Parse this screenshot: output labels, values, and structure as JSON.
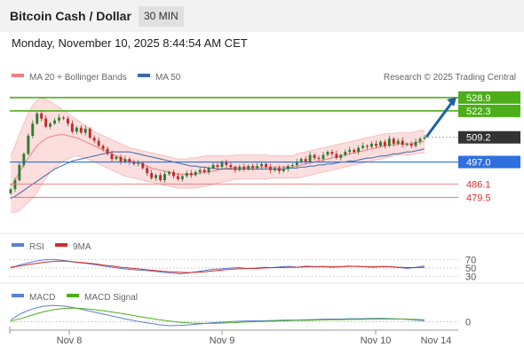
{
  "header": {
    "title": "Bitcoin Cash / Dollar",
    "timeframe": "30 MIN"
  },
  "datetime": "Monday, November 10, 2025 8:44:54 AM CET",
  "credit": "Research © 2025 Trading Central",
  "legend": {
    "ma20": "MA 20 + Bollinger Bands",
    "ma50": "MA 50",
    "rsi": "RSI",
    "rsi9": "9MA",
    "macd": "MACD",
    "macd_signal": "MACD Signal"
  },
  "colors": {
    "ma20": "#f08080",
    "band": "#fbd3d3",
    "ma50": "#3a6ab0",
    "up": "#2e7d32",
    "down": "#c62828",
    "resistance": "#4caf1a",
    "support": "#e57373",
    "pivot": "#2f6fdf",
    "current": "#333333",
    "rsi": "#5b7fd6",
    "rsi9": "#d62828",
    "macd": "#5b7fd6",
    "macd_signal": "#4caf1a",
    "arrow": "#1f5fa8"
  },
  "chart_data": [
    {
      "type": "candlestick",
      "name": "price",
      "ylim": [
        470,
        535
      ],
      "x_labels": [
        "Nov 8",
        "Nov 9",
        "Nov 10",
        "Nov 14"
      ],
      "levels": [
        {
          "value": 528.9,
          "label": "528.9",
          "kind": "resistance"
        },
        {
          "value": 522.3,
          "label": "522.3",
          "kind": "resistance"
        },
        {
          "value": 509.2,
          "label": "509.2",
          "kind": "current"
        },
        {
          "value": 497.0,
          "label": "497.0",
          "kind": "pivot"
        },
        {
          "value": 486.1,
          "label": "486.1",
          "kind": "support"
        },
        {
          "value": 479.5,
          "label": "479.5",
          "kind": "support"
        }
      ],
      "forecast": {
        "from": 508.5,
        "to": 528.9
      },
      "close": [
        483.5,
        488,
        495.5,
        501,
        510,
        516,
        521,
        518.5,
        514.5,
        516,
        517.5,
        519,
        518.5,
        516,
        512,
        514,
        511.5,
        513.5,
        509,
        507.5,
        505,
        503.5,
        501,
        498.5,
        499.5,
        497,
        498.5,
        497,
        496,
        496.5,
        494,
        491.5,
        489,
        490.5,
        488,
        491,
        492,
        490,
        488.5,
        490,
        491.5,
        490.5,
        492,
        493,
        492,
        494,
        495.5,
        494.5,
        497,
        495.5,
        494.5,
        493,
        494.5,
        493.5,
        495,
        494,
        495,
        496,
        494.5,
        493,
        494,
        492.5,
        493.5,
        495,
        495.5,
        497,
        498.5,
        497,
        500.5,
        499,
        498.5,
        500.5,
        502,
        501,
        499,
        500.5,
        502,
        503,
        502,
        504,
        505,
        504.5,
        506,
        505,
        507,
        505,
        508.5,
        506,
        507.5,
        505.5,
        506,
        505,
        507,
        508.5,
        509.2
      ],
      "ma20": [
        485,
        488,
        492,
        496,
        499,
        502,
        505,
        507,
        508.5,
        509.5,
        510,
        510.5,
        510.5,
        510,
        509.5,
        509,
        508,
        507,
        506,
        505,
        504,
        503,
        502,
        501,
        500,
        499,
        498,
        497.5,
        497,
        496.5,
        496,
        495,
        494,
        493.5,
        493,
        492.5,
        492,
        491.5,
        491,
        491,
        491,
        491,
        491,
        491.5,
        492,
        492,
        492.5,
        493,
        493.5,
        494,
        494,
        494.5,
        494.5,
        494.5,
        494.5,
        494.5,
        494.5,
        494.5,
        494.5,
        494.5,
        494.5,
        494.5,
        494.5,
        494.5,
        494.5,
        495,
        495.5,
        496,
        496.5,
        497,
        497.5,
        498,
        498.5,
        499,
        499.5,
        500,
        500.5,
        501,
        501.5,
        502,
        502.5,
        503,
        503.5,
        504,
        504.5,
        505,
        505.5,
        505.5,
        506,
        506,
        506,
        506,
        506.5,
        507,
        507
      ],
      "band_upper": [
        500,
        505,
        511,
        516,
        521,
        525,
        527.5,
        528.5,
        528,
        527,
        525.5,
        524,
        522.5,
        521,
        519.5,
        518,
        516.5,
        515,
        513.5,
        512,
        511,
        510,
        509,
        508,
        507,
        506,
        505,
        504,
        503.5,
        503,
        502.5,
        502,
        501.5,
        501,
        500.5,
        500,
        499.5,
        499,
        498.5,
        498.5,
        498.5,
        499,
        499,
        499.5,
        500,
        500,
        500,
        500,
        500,
        500,
        500,
        500.5,
        500.5,
        500.5,
        500.5,
        500.5,
        500.5,
        500.5,
        500.5,
        500,
        500,
        500,
        500,
        500,
        500,
        501,
        501.5,
        502,
        502.5,
        503,
        503.5,
        504,
        504.5,
        505,
        505.5,
        506,
        506.5,
        507,
        507.5,
        508,
        508.5,
        509,
        509.5,
        510,
        510.5,
        511,
        511,
        511,
        511.5,
        511.5,
        511.5,
        511.5,
        512,
        512.5,
        512.5
      ],
      "band_lower": [
        472,
        472,
        473,
        475,
        477,
        479,
        482,
        486,
        489,
        492,
        494,
        496,
        497.5,
        498.5,
        499.5,
        500,
        499.5,
        499,
        498,
        497,
        496,
        495,
        494,
        493,
        492,
        491,
        490,
        489.5,
        489,
        488.5,
        488,
        487.5,
        487,
        486.5,
        486,
        485.5,
        485,
        484.5,
        484,
        484,
        484,
        484,
        484,
        484.5,
        485,
        485.5,
        486,
        486.5,
        487,
        487.5,
        488,
        488.5,
        488.5,
        488.5,
        488.5,
        488.5,
        488.5,
        488.5,
        488.5,
        489,
        489,
        489,
        489,
        489,
        489,
        489,
        489.5,
        490,
        490.5,
        491,
        491.5,
        492,
        492.5,
        493,
        493.5,
        494,
        494.5,
        495,
        495.5,
        496,
        496.5,
        497,
        497.5,
        498,
        498.5,
        499,
        499.5,
        500,
        500.5,
        500.5,
        500.5,
        500.5,
        501,
        501.5,
        501.5
      ],
      "ma50": [
        479,
        480,
        481.5,
        483,
        484.5,
        486,
        487.5,
        489,
        490.5,
        492,
        493.5,
        494.5,
        495.5,
        496.5,
        497.5,
        498,
        498.5,
        499,
        499.5,
        500,
        500.5,
        501,
        501.5,
        502,
        502,
        502,
        502,
        502,
        501.5,
        501,
        500.5,
        500,
        499.5,
        499,
        498.5,
        498,
        497.5,
        497,
        496.5,
        496,
        495.5,
        495,
        495,
        494.5,
        494.5,
        494,
        494,
        493.5,
        493.5,
        493.5,
        493.5,
        493.5,
        493.5,
        493.5,
        493.5,
        493.5,
        493.5,
        493.5,
        493.5,
        493.5,
        493.5,
        493.5,
        493.5,
        494,
        494,
        494,
        494.5,
        494.5,
        495,
        495,
        495.5,
        495.5,
        496,
        496,
        496.5,
        497,
        497,
        497.5,
        497.5,
        498,
        498.5,
        499,
        499,
        499.5,
        500,
        500,
        500.5,
        501,
        501,
        501.5,
        502,
        502,
        502.5,
        503,
        503.5
      ]
    },
    {
      "type": "line",
      "name": "rsi",
      "ylim": [
        20,
        80
      ],
      "ticks": [
        "70",
        "50",
        "30"
      ],
      "series": [
        {
          "name": "RSI",
          "values": [
            50,
            57,
            62,
            67,
            70,
            71,
            69,
            66,
            63,
            61,
            58,
            55,
            52,
            49,
            47,
            45,
            44,
            42,
            40,
            38,
            36,
            38,
            41,
            44,
            47,
            48,
            50,
            51,
            49,
            50,
            52,
            51,
            53,
            54,
            52,
            55,
            53,
            54,
            52,
            53,
            55,
            54,
            53,
            52,
            54,
            53,
            51,
            49,
            52,
            55
          ]
        },
        {
          "name": "9MA",
          "values": [
            52,
            55,
            58,
            61,
            64,
            66,
            67,
            66,
            64,
            62,
            60,
            57,
            55,
            52,
            50,
            48,
            46,
            44,
            42,
            41,
            40,
            39,
            40,
            41,
            43,
            45,
            47,
            48,
            49,
            49,
            50,
            51,
            51,
            52,
            52,
            53,
            53,
            53,
            53,
            53,
            54,
            54,
            53,
            53,
            53,
            53,
            52,
            51,
            51,
            52
          ]
        }
      ]
    },
    {
      "type": "line",
      "name": "macd",
      "ylim": [
        -2,
        6
      ],
      "ticks": [
        "0"
      ],
      "series": [
        {
          "name": "MACD",
          "values": [
            0.5,
            2.5,
            3.8,
            4.6,
            4.9,
            4.7,
            4.2,
            3.5,
            2.8,
            2.1,
            1.4,
            0.7,
            0.1,
            -0.4,
            -0.9,
            -1.2,
            -1.1,
            -0.9,
            -0.6,
            -0.3,
            -0.1,
            0.1,
            0.2,
            0.3,
            0.3,
            0.4,
            0.5,
            0.5,
            0.6,
            0.7,
            0.8,
            0.8,
            0.9,
            0.9,
            1.0,
            1.0,
            0.9,
            0.8,
            0.5,
            0.3
          ]
        },
        {
          "name": "MACD Signal",
          "values": [
            0.2,
            1.0,
            2.0,
            2.9,
            3.6,
            4.0,
            4.1,
            3.9,
            3.6,
            3.2,
            2.7,
            2.2,
            1.6,
            1.1,
            0.6,
            0.2,
            -0.2,
            -0.4,
            -0.5,
            -0.5,
            -0.4,
            -0.3,
            -0.1,
            0.0,
            0.1,
            0.2,
            0.3,
            0.4,
            0.4,
            0.5,
            0.6,
            0.6,
            0.7,
            0.7,
            0.8,
            0.8,
            0.8,
            0.8,
            0.7,
            0.6
          ]
        }
      ]
    }
  ]
}
